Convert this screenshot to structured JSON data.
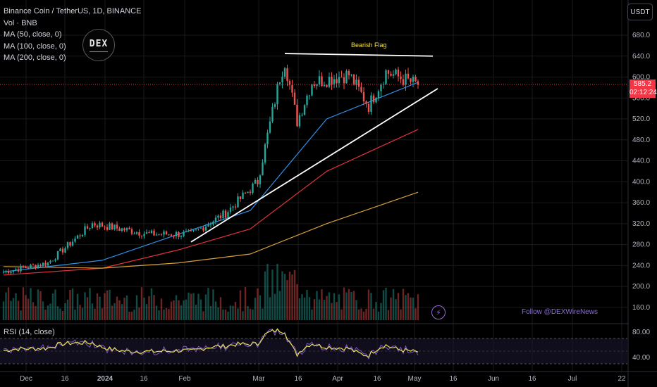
{
  "legend": {
    "symbol": "Binance Coin / TetherUS, 1D, BINANCE",
    "vol": "Vol · BNB",
    "ma50": "MA (50, close, 0)",
    "ma100": "MA (100, close, 0)",
    "ma200": "MA (200, close, 0)"
  },
  "currency_button": "USDT",
  "logo_text": "DEX",
  "watermark": "Follow @DEXWireNews",
  "price_badge": {
    "price": "585.2",
    "countdown": "02:12:24"
  },
  "rsi": {
    "label": "RSI (14, close)",
    "upper": "80.00",
    "lower": "40.00"
  },
  "chart_data": {
    "type": "candlestick",
    "title": "Binance Coin / TetherUS, 1D, BINANCE",
    "annotation": "Bearish Flag",
    "y_ticks": [
      "680.0",
      "640.0",
      "600.0",
      "560.0",
      "520.0",
      "480.0",
      "440.0",
      "400.0",
      "360.0",
      "320.0",
      "280.0",
      "240.0",
      "200.0",
      "160.0"
    ],
    "x_ticks": [
      "Dec",
      "16",
      "2024",
      "16",
      "Feb",
      "Mar",
      "16",
      "Apr",
      "16",
      "May",
      "16",
      "Jun",
      "16",
      "Jul",
      "22"
    ],
    "last_price": 585.2,
    "price_anchors": [
      {
        "date": "Nov 22",
        "price": 228
      },
      {
        "date": "Dec 10",
        "price": 245
      },
      {
        "date": "Dec 28",
        "price": 320
      },
      {
        "date": "Jan 20",
        "price": 300
      },
      {
        "date": "Feb 6",
        "price": 300
      },
      {
        "date": "Feb 20",
        "price": 340
      },
      {
        "date": "Mar 4",
        "price": 400
      },
      {
        "date": "Mar 13",
        "price": 600
      },
      {
        "date": "Mar 15",
        "price": 630
      },
      {
        "date": "Mar 20",
        "price": 515
      },
      {
        "date": "Mar 26",
        "price": 590
      },
      {
        "date": "Apr 10",
        "price": 605
      },
      {
        "date": "Apr 18",
        "price": 545
      },
      {
        "date": "Apr 25",
        "price": 610
      },
      {
        "date": "May 8",
        "price": 585
      }
    ],
    "moving_averages": [
      {
        "name": "MA (50, close, 0)",
        "color": "#2f8fe8",
        "points": [
          {
            "date": "Nov 22",
            "price": 228
          },
          {
            "date": "Jan 1",
            "price": 250
          },
          {
            "date": "Feb 1",
            "price": 300
          },
          {
            "date": "Mar 1",
            "price": 345
          },
          {
            "date": "Apr 1",
            "price": 520
          },
          {
            "date": "May 8",
            "price": 590
          }
        ]
      },
      {
        "name": "MA (100, close, 0)",
        "color": "#e0323d",
        "points": [
          {
            "date": "Nov 22",
            "price": 222
          },
          {
            "date": "Jan 1",
            "price": 235
          },
          {
            "date": "Feb 1",
            "price": 270
          },
          {
            "date": "Mar 1",
            "price": 310
          },
          {
            "date": "Apr 1",
            "price": 420
          },
          {
            "date": "May 8",
            "price": 500
          }
        ]
      },
      {
        "name": "MA (200, close, 0)",
        "color": "#d9a03a",
        "points": [
          {
            "date": "Nov 22",
            "price": 238
          },
          {
            "date": "Jan 1",
            "price": 235
          },
          {
            "date": "Feb 1",
            "price": 245
          },
          {
            "date": "Mar 1",
            "price": 262
          },
          {
            "date": "Apr 1",
            "price": 320
          },
          {
            "date": "May 8",
            "price": 380
          }
        ]
      }
    ],
    "trendlines": [
      {
        "name": "flag-top",
        "start": {
          "date": "Mar 15",
          "price": 645
        },
        "end": {
          "date": "May 14",
          "price": 640
        }
      },
      {
        "name": "flag-support",
        "start": {
          "date": "Feb 6",
          "price": 285
        },
        "end": {
          "date": "May 16",
          "price": 578
        }
      }
    ],
    "rsi_range": [
      20,
      90
    ],
    "rsi_bands": [
      70,
      30
    ]
  },
  "colors": {
    "up": "#26a69a",
    "down": "#ef5350",
    "bg": "#000000",
    "grid": "#1a1a1a"
  }
}
